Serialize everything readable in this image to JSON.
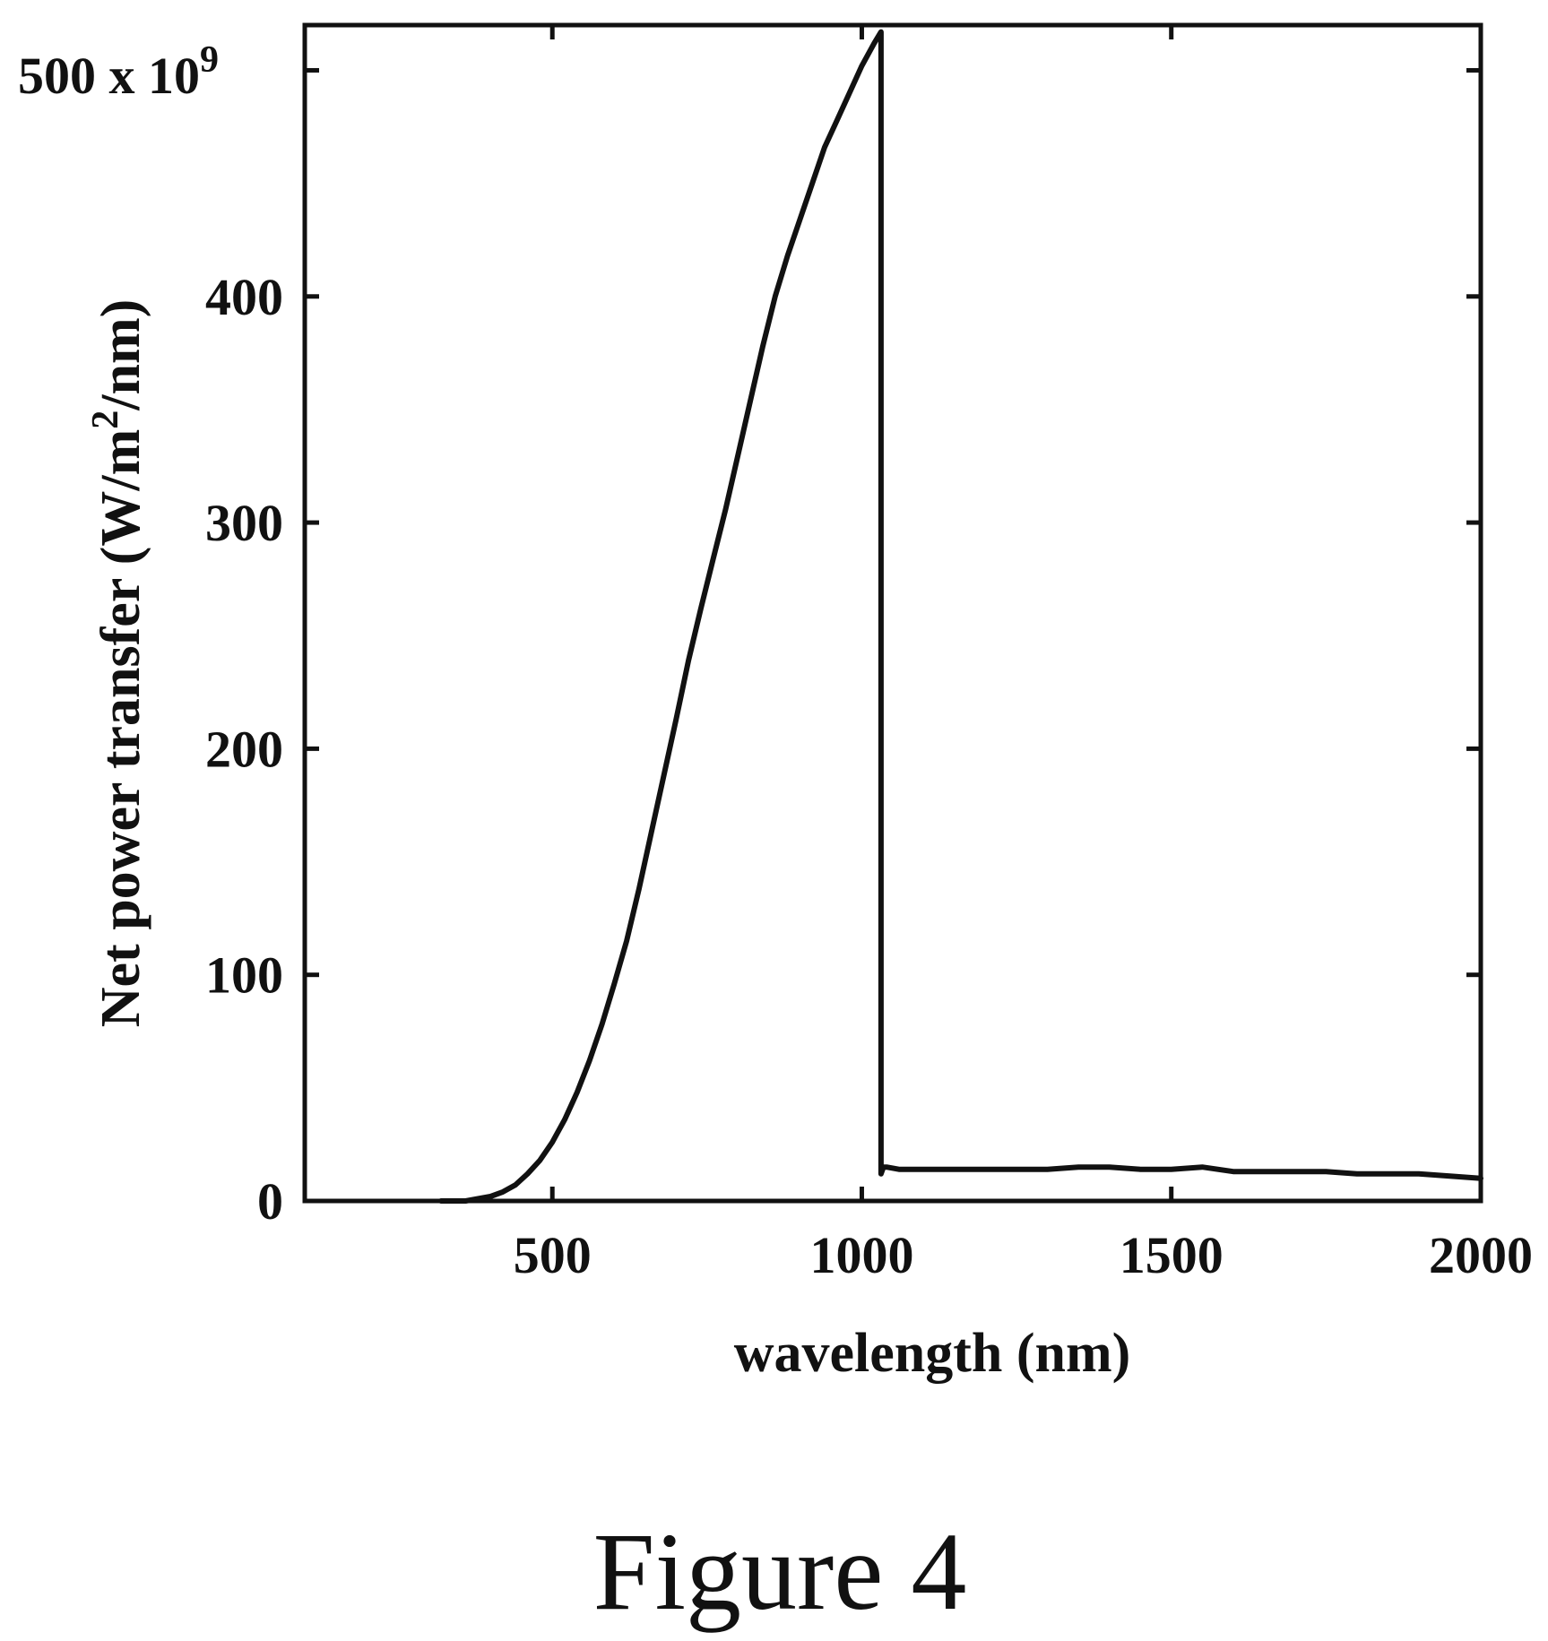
{
  "figure": {
    "caption": "Figure 4"
  },
  "chart_data": {
    "type": "line",
    "title": "",
    "xlabel": "wavelength (nm)",
    "ylabel_prefix": "Net power transfer (W/m",
    "ylabel_sup": "2",
    "ylabel_suffix": "/nm)",
    "y_multiplier_base": "500 x 10",
    "y_multiplier_exp": "9",
    "xlim": [
      100,
      2000
    ],
    "ylim": [
      0,
      520
    ],
    "x_ticks": [
      500,
      1000,
      1500,
      2000
    ],
    "x_tick_labels": [
      "500",
      "1000",
      "1500",
      "2000"
    ],
    "y_ticks": [
      0,
      100,
      200,
      300,
      400,
      500
    ],
    "y_tick_labels": [
      "0",
      "100",
      "200",
      "300",
      "400",
      ""
    ],
    "grid": false,
    "legend": "none",
    "colors": {
      "line": "#111111",
      "axis": "#111111"
    },
    "series": [
      {
        "x": [
          320,
          340,
          360,
          380,
          400,
          420,
          440,
          460,
          480,
          500,
          520,
          540,
          560,
          580,
          600,
          620,
          640,
          660,
          680,
          700,
          720,
          740,
          760,
          780,
          800,
          820,
          840,
          860,
          880,
          900,
          920,
          940,
          960,
          980,
          1000,
          1020,
          1031,
          1031,
          1035,
          1040,
          1060,
          1100,
          1150,
          1200,
          1250,
          1300,
          1350,
          1400,
          1450,
          1500,
          1550,
          1600,
          1650,
          1700,
          1750,
          1800,
          1850,
          1900,
          1950,
          2000
        ],
        "y": [
          0,
          0,
          0,
          1,
          2,
          4,
          7,
          12,
          18,
          26,
          36,
          48,
          62,
          78,
          96,
          115,
          138,
          163,
          188,
          213,
          239,
          262,
          284,
          306,
          330,
          354,
          378,
          400,
          418,
          434,
          450,
          466,
          478,
          490,
          502,
          512,
          517,
          12,
          15,
          15,
          14,
          14,
          14,
          14,
          14,
          14,
          15,
          15,
          14,
          14,
          15,
          13,
          13,
          13,
          13,
          12,
          12,
          12,
          11,
          10
        ]
      }
    ]
  }
}
